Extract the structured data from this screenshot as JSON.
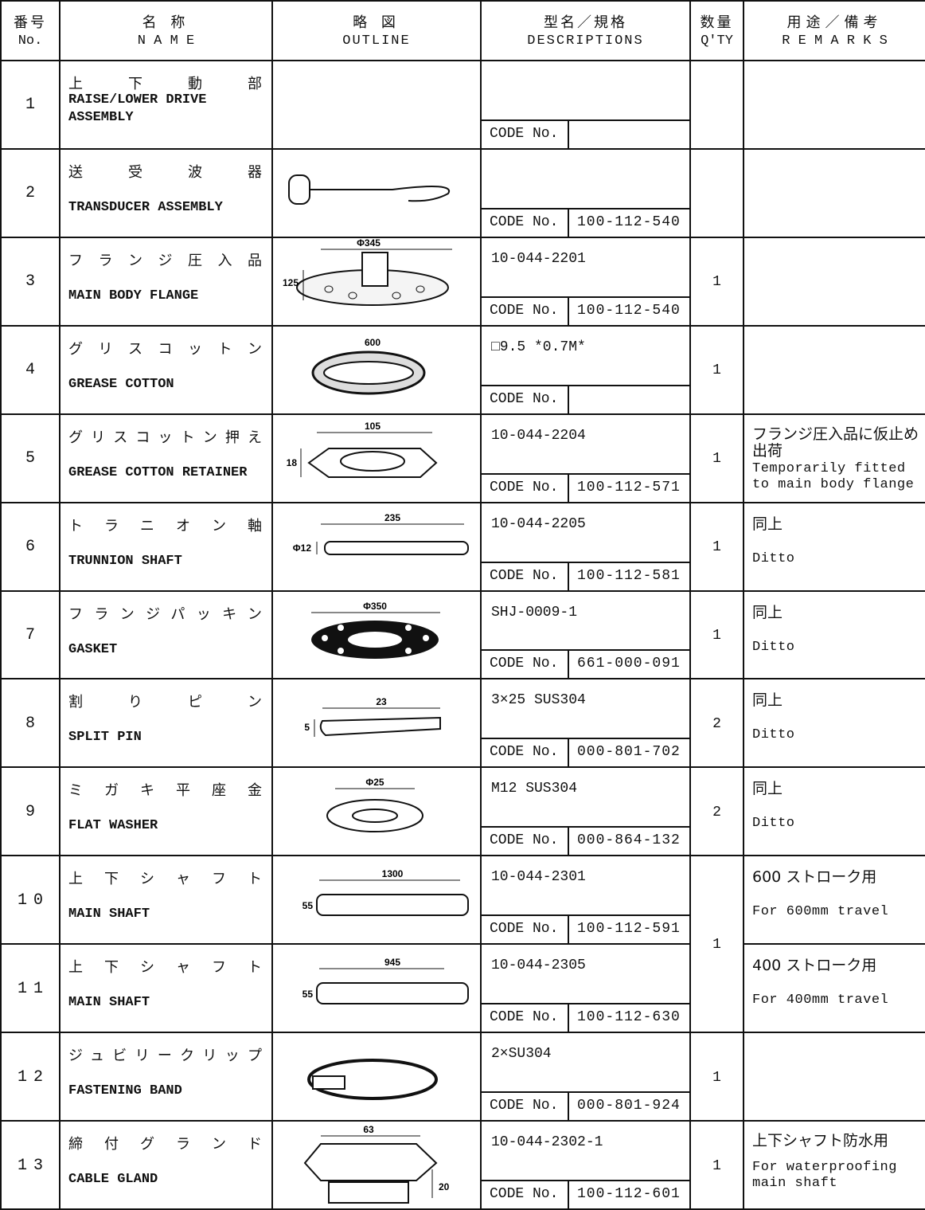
{
  "header": {
    "no": {
      "ja": "番号",
      "en": "No."
    },
    "name": {
      "ja": "名 称",
      "en": "N A M E"
    },
    "outline": {
      "ja": "略 図",
      "en": "OUTLINE"
    },
    "descriptions": {
      "ja": "型名／規格",
      "en": "DESCRIPTIONS"
    },
    "qty": {
      "ja": "数量",
      "en": "Q'TY"
    },
    "remarks": {
      "ja": "用途／備考",
      "en": "R E M A R K S"
    }
  },
  "code_label": "CODE No.",
  "rows": [
    {
      "no": 1,
      "name_ja": "上下動部",
      "name_en": "RAISE/LOWER DRIVE ASSEMBLY"
    },
    {
      "no": 2,
      "name_ja": "送受波器",
      "name_en": "TRANSDUCER ASSEMBLY",
      "code": "100-112-540"
    },
    {
      "no": 3,
      "name_ja": "フランジ圧入品",
      "name_en": "MAIN BODY FLANGE",
      "outline_labels": [
        "Φ345",
        "125"
      ],
      "description": "10-044-2201",
      "code": "100-112-540",
      "qty": 1
    },
    {
      "no": 4,
      "name_ja": "グリスコットン",
      "name_en": "GREASE COTTON",
      "outline_labels": [
        "600"
      ],
      "description": "□9.5 *0.7M*",
      "qty": 1
    },
    {
      "no": 5,
      "name_ja": "グリスコットン押え",
      "name_en": "GREASE COTTON RETAINER",
      "outline_labels": [
        "105",
        "18"
      ],
      "description": "10-044-2204",
      "code": "100-112-571",
      "qty": 1,
      "remarks_ja": "フランジ圧入品に仮止め出荷",
      "remarks_en": "Temporarily fitted to main body flange"
    },
    {
      "no": 6,
      "name_ja": "トラニオン軸",
      "name_en": "TRUNNION SHAFT",
      "outline_labels": [
        "235",
        "Φ12"
      ],
      "description": "10-044-2205",
      "code": "100-112-581",
      "qty": 1,
      "remarks_ja": "同上",
      "remarks_en": "Ditto"
    },
    {
      "no": 7,
      "name_ja": "フランジパッキン",
      "name_en": "GASKET",
      "outline_labels": [
        "Φ350"
      ],
      "description": "SHJ-0009-1",
      "code": "661-000-091",
      "qty": 1,
      "remarks_ja": "同上",
      "remarks_en": "Ditto"
    },
    {
      "no": 8,
      "name_ja": "割りピン",
      "name_en": "SPLIT PIN",
      "outline_labels": [
        "23",
        "5"
      ],
      "description": "3×25 SUS304",
      "code": "000-801-702",
      "qty": 2,
      "remarks_ja": "同上",
      "remarks_en": "Ditto"
    },
    {
      "no": 9,
      "name_ja": "ミガキ平座金",
      "name_en": "FLAT WASHER",
      "outline_labels": [
        "Φ25"
      ],
      "description": "M12 SUS304",
      "code": "000-864-132",
      "qty": 2,
      "remarks_ja": "同上",
      "remarks_en": "Ditto"
    },
    {
      "no": 10,
      "name_ja": "上下シャフト",
      "name_en": "MAIN SHAFT",
      "outline_labels": [
        "1300",
        "55"
      ],
      "description": "10-044-2301",
      "code": "100-112-591",
      "qty": 1,
      "remarks_ja": "600 ストローク用",
      "remarks_en": "For 600mm travel"
    },
    {
      "no": 11,
      "name_ja": "上下シャフト",
      "name_en": "MAIN SHAFT",
      "outline_labels": [
        "945",
        "55"
      ],
      "description": "10-044-2305",
      "code": "100-112-630",
      "remarks_ja": "400 ストローク用",
      "remarks_en": "For 400mm travel"
    },
    {
      "no": 12,
      "name_ja": "ジュビリークリップ",
      "name_en": "FASTENING BAND",
      "description": "2×SU304",
      "code": "000-801-924",
      "qty": 1
    },
    {
      "no": 13,
      "name_ja": "締付グランド",
      "name_en": "CABLE GLAND",
      "outline_labels": [
        "63",
        "20"
      ],
      "description": "10-044-2302-1",
      "code": "100-112-601",
      "qty": 1,
      "remarks_ja": "上下シャフト防水用",
      "remarks_en": "For waterproofing main shaft"
    }
  ]
}
